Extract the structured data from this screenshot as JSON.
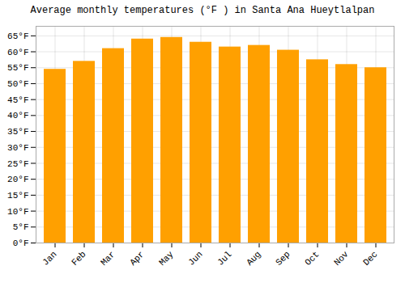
{
  "chart_data": {
    "type": "bar",
    "title": "Average monthly temperatures (°F ) in Santa Ana Hueytlalpan",
    "categories": [
      "Jan",
      "Feb",
      "Mar",
      "Apr",
      "May",
      "Jun",
      "Jul",
      "Aug",
      "Sep",
      "Oct",
      "Nov",
      "Dec"
    ],
    "values": [
      54.5,
      57.0,
      61.0,
      64.0,
      64.5,
      63.0,
      61.5,
      62.0,
      60.5,
      57.5,
      56.0,
      55.0
    ],
    "color": "#FFA000",
    "ylim": [
      0,
      68
    ],
    "yticks": [
      {
        "value": 0,
        "label": "0°F"
      },
      {
        "value": 5,
        "label": "5°F"
      },
      {
        "value": 10,
        "label": "10°F"
      },
      {
        "value": 15,
        "label": "15°F"
      },
      {
        "value": 20,
        "label": "20°F"
      },
      {
        "value": 25,
        "label": "25°F"
      },
      {
        "value": 30,
        "label": "30°F"
      },
      {
        "value": 35,
        "label": "35°F"
      },
      {
        "value": 40,
        "label": "40°F"
      },
      {
        "value": 45,
        "label": "45°F"
      },
      {
        "value": 50,
        "label": "50°F"
      },
      {
        "value": 55,
        "label": "55°F"
      },
      {
        "value": 60,
        "label": "60°F"
      },
      {
        "value": 65,
        "label": "65°F"
      }
    ],
    "grid": true
  }
}
